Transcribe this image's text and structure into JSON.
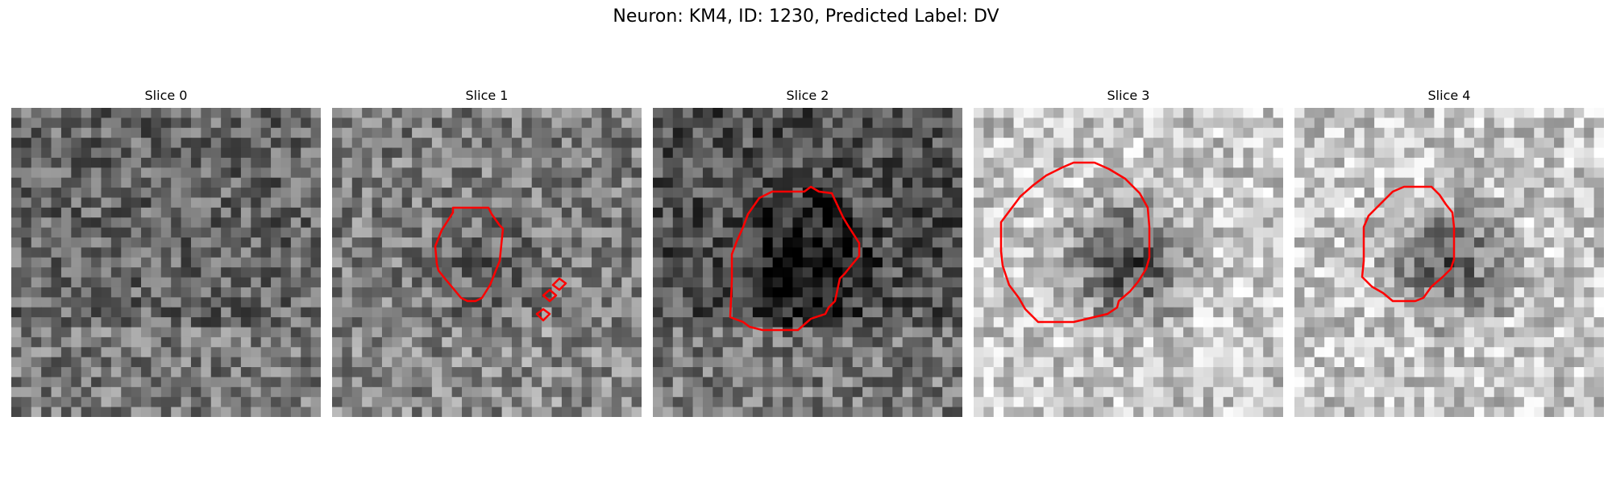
{
  "figure": {
    "title": "Neuron: KM4, ID: 1230, Predicted Label: DV"
  },
  "overlay_color": "#ff0000",
  "slices": [
    {
      "label": "Slice 0",
      "mean": 0.42,
      "blob_dark": 0.0,
      "bright_band": 0.15,
      "has_roi": false
    },
    {
      "label": "Slice 1",
      "mean": 0.5,
      "blob_dark": 0.1,
      "bright_band": 0.1,
      "has_roi": true
    },
    {
      "label": "Slice 2",
      "mean": 0.35,
      "blob_dark": 0.35,
      "bright_band": 0.3,
      "has_roi": true
    },
    {
      "label": "Slice 3",
      "mean": 0.78,
      "blob_dark": 0.55,
      "bright_band": 0.0,
      "has_roi": true
    },
    {
      "label": "Slice 4",
      "mean": 0.78,
      "blob_dark": 0.45,
      "bright_band": 0.0,
      "has_roi": true
    }
  ]
}
